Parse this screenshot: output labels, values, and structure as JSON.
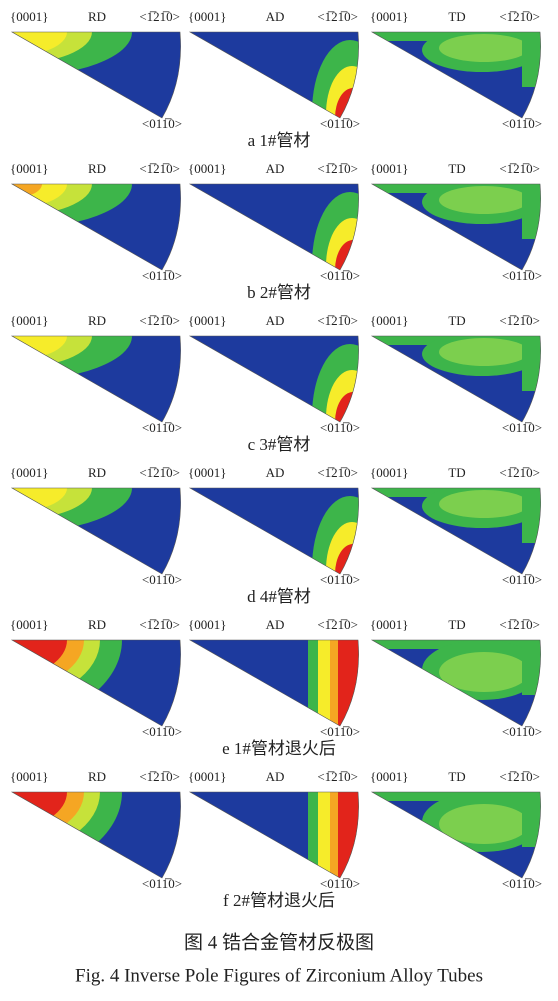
{
  "figure": {
    "panels": [
      {
        "caption": "a  1#管材",
        "cells": [
          {
            "pole": "{0001}",
            "direction": "RD",
            "top_right": "<1̅21̅0>",
            "bottom": "<011̅0>"
          },
          {
            "pole": "{0001}",
            "direction": "AD",
            "top_right": "<1̅21̅0>",
            "bottom": "<011̅0>"
          },
          {
            "pole": "{0001}",
            "direction": "TD",
            "top_right": "<1̅21̅0>",
            "bottom": "<011̅0>"
          }
        ]
      },
      {
        "caption": "b  2#管材",
        "cells": [
          {
            "pole": "{0001}",
            "direction": "RD",
            "top_right": "<1̅21̅0>",
            "bottom": "<011̅0>"
          },
          {
            "pole": "{0001}",
            "direction": "AD",
            "top_right": "<1̅21̅0>",
            "bottom": "<011̅0>"
          },
          {
            "pole": "{0001}",
            "direction": "TD",
            "top_right": "<1̅21̅0>",
            "bottom": "<011̅0>"
          }
        ]
      },
      {
        "caption": "c  3#管材",
        "cells": [
          {
            "pole": "{0001}",
            "direction": "RD",
            "top_right": "<1̅21̅0>",
            "bottom": "<011̅0>"
          },
          {
            "pole": "{0001}",
            "direction": "AD",
            "top_right": "<1̅21̅0>",
            "bottom": "<011̅0>"
          },
          {
            "pole": "{0001}",
            "direction": "TD",
            "top_right": "<1̅21̅0>",
            "bottom": "<011̅0>"
          }
        ]
      },
      {
        "caption": "d  4#管材",
        "cells": [
          {
            "pole": "{0001}",
            "direction": "RD",
            "top_right": "<1̅21̅0>",
            "bottom": "<011̅0>"
          },
          {
            "pole": "{0001}",
            "direction": "AD",
            "top_right": "<1̅21̅0>",
            "bottom": "<011̅0>"
          },
          {
            "pole": "{0001}",
            "direction": "TD",
            "top_right": "<1̅21̅0>",
            "bottom": "<011̅0>"
          }
        ]
      },
      {
        "caption": "e  1#管材退火后",
        "cells": [
          {
            "pole": "{0001}",
            "direction": "RD",
            "top_right": "<1̅21̅0>",
            "bottom": "<011̅0>"
          },
          {
            "pole": "{0001}",
            "direction": "AD",
            "top_right": "<1̅21̅0>",
            "bottom": "<011̅0>"
          },
          {
            "pole": "{0001}",
            "direction": "TD",
            "top_right": "<1̅21̅0>",
            "bottom": "<011̅0>"
          }
        ]
      },
      {
        "caption": "f  2#管材退火后",
        "cells": [
          {
            "pole": "{0001}",
            "direction": "RD",
            "top_right": "<1̅21̅0>",
            "bottom": "<011̅0>"
          },
          {
            "pole": "{0001}",
            "direction": "AD",
            "top_right": "<1̅21̅0>",
            "bottom": "<011̅0>"
          },
          {
            "pole": "{0001}",
            "direction": "TD",
            "top_right": "<1̅21̅0>",
            "bottom": "<011̅0>"
          }
        ]
      }
    ],
    "caption_zh": "图 4  锆合金管材反极图",
    "caption_en": "Fig. 4  Inverse Pole Figures of Zirconium Alloy Tubes"
  }
}
